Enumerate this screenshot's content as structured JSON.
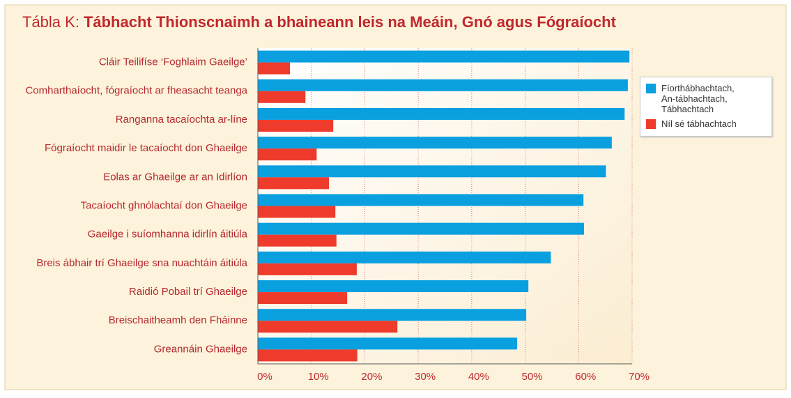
{
  "chart_data": {
    "type": "barh",
    "title_prefix": "Tábla K:",
    "title": "Tábhacht Thionscnaimh a bhaineann leis na Meáin, Gnó agus Fógraíocht",
    "categories": [
      "Cláir Teilifíse ‘Foghlaim Gaeilge’",
      "Comharthaíocht, fógraíocht ar fheasacht teanga",
      "Ranganna tacaíochta ar-líne",
      "Fógraíocht maidir le tacaíocht don Ghaeilge",
      "Eolas ar Ghaeilge ar an Idirlíon",
      "Tacaíocht ghnólachtaí don Ghaeilge",
      "Gaeilge i suíomhanna idirlín áitiúla",
      "Breis ábhair trí Ghaeilge sna nuachtáin áitiúla",
      "Raidió Pobail trí Ghaeilge",
      "Breischaitheamh den Fháinne",
      "Greannáin Ghaeilge"
    ],
    "series": [
      {
        "name": "Fíorthábhachtach, An-tábhachtach, Tábhachtach",
        "color": "#0aa0e0",
        "values": [
          69.5,
          69.2,
          68.6,
          66.2,
          65.1,
          60.9,
          61.0,
          54.8,
          50.6,
          50.2,
          48.5
        ]
      },
      {
        "name": "Níl sé tábhachtach",
        "color": "#ee3b2b",
        "values": [
          6.0,
          8.9,
          14.1,
          11.0,
          13.3,
          14.5,
          14.7,
          18.5,
          16.7,
          26.1,
          18.6
        ]
      }
    ],
    "xlim": [
      0,
      70
    ],
    "xticks": [
      {
        "value": 0,
        "label": "0%"
      },
      {
        "value": 10,
        "label": "10%"
      },
      {
        "value": 20,
        "label": "20%"
      },
      {
        "value": 30,
        "label": "30%"
      },
      {
        "value": 40,
        "label": "40%"
      },
      {
        "value": 50,
        "label": "50%"
      },
      {
        "value": 60,
        "label": "60%"
      },
      {
        "value": 70,
        "label": "70%"
      }
    ],
    "grid": true,
    "legend": "right"
  }
}
